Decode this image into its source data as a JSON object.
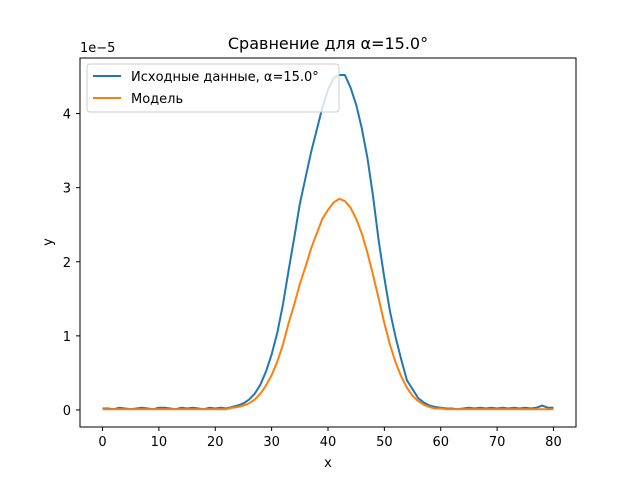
{
  "chart_data": {
    "type": "line",
    "title": "Сравнение для α=15.0°",
    "xlabel": "x",
    "ylabel": "y",
    "offset_label": "1e−5",
    "xlim": [
      -4,
      84
    ],
    "ylim": [
      -0.23,
      4.75
    ],
    "xticks": [
      0,
      10,
      20,
      30,
      40,
      50,
      60,
      70,
      80
    ],
    "xtick_labels": [
      "0",
      "10",
      "20",
      "30",
      "40",
      "50",
      "60",
      "70",
      "80"
    ],
    "yticks": [
      0,
      1,
      2,
      3,
      4
    ],
    "ytick_labels": [
      "0",
      "1",
      "2",
      "3",
      "4"
    ],
    "grid": false,
    "legend": {
      "position": "top-left"
    },
    "x": [
      0,
      1,
      2,
      3,
      4,
      5,
      6,
      7,
      8,
      9,
      10,
      11,
      12,
      13,
      14,
      15,
      16,
      17,
      18,
      19,
      20,
      21,
      22,
      23,
      24,
      25,
      26,
      27,
      28,
      29,
      30,
      31,
      32,
      33,
      34,
      35,
      36,
      37,
      38,
      39,
      40,
      41,
      42,
      43,
      44,
      45,
      46,
      47,
      48,
      49,
      50,
      51,
      52,
      53,
      54,
      55,
      56,
      57,
      58,
      59,
      60,
      61,
      62,
      63,
      64,
      65,
      66,
      67,
      68,
      69,
      70,
      71,
      72,
      73,
      74,
      75,
      76,
      77,
      78,
      79,
      80
    ],
    "series": [
      {
        "name": "Исходные данные, α=15.0°",
        "color": "#1f77b4",
        "values": [
          0.02,
          0.02,
          0.01,
          0.03,
          0.02,
          0.01,
          0.02,
          0.03,
          0.02,
          0.01,
          0.03,
          0.03,
          0.02,
          0.01,
          0.03,
          0.02,
          0.03,
          0.02,
          0.01,
          0.03,
          0.02,
          0.03,
          0.02,
          0.04,
          0.06,
          0.09,
          0.14,
          0.22,
          0.34,
          0.52,
          0.75,
          1.04,
          1.42,
          1.88,
          2.32,
          2.78,
          3.13,
          3.48,
          3.78,
          4.08,
          4.32,
          4.48,
          4.52,
          4.52,
          4.35,
          4.12,
          3.8,
          3.4,
          2.88,
          2.28,
          1.78,
          1.33,
          0.98,
          0.68,
          0.4,
          0.28,
          0.16,
          0.1,
          0.06,
          0.04,
          0.03,
          0.02,
          0.02,
          0.01,
          0.02,
          0.03,
          0.02,
          0.03,
          0.02,
          0.03,
          0.02,
          0.03,
          0.02,
          0.03,
          0.02,
          0.03,
          0.02,
          0.03,
          0.06,
          0.03,
          0.03
        ]
      },
      {
        "name": "Модель",
        "color": "#ff7f0e",
        "values": [
          0.01,
          0.01,
          0.01,
          0.01,
          0.01,
          0.01,
          0.01,
          0.01,
          0.01,
          0.01,
          0.01,
          0.01,
          0.01,
          0.01,
          0.01,
          0.01,
          0.01,
          0.01,
          0.01,
          0.01,
          0.01,
          0.01,
          0.01,
          0.03,
          0.04,
          0.06,
          0.09,
          0.14,
          0.22,
          0.33,
          0.47,
          0.65,
          0.88,
          1.17,
          1.42,
          1.7,
          1.93,
          2.18,
          2.38,
          2.58,
          2.7,
          2.8,
          2.85,
          2.82,
          2.73,
          2.58,
          2.38,
          2.12,
          1.82,
          1.5,
          1.17,
          0.88,
          0.64,
          0.45,
          0.3,
          0.19,
          0.12,
          0.07,
          0.04,
          0.02,
          0.02,
          0.01,
          0.01,
          0.01,
          0.01,
          0.01,
          0.01,
          0.01,
          0.01,
          0.01,
          0.01,
          0.01,
          0.01,
          0.01,
          0.01,
          0.01,
          0.01,
          0.01,
          0.01,
          0.01,
          0.01
        ]
      }
    ]
  }
}
